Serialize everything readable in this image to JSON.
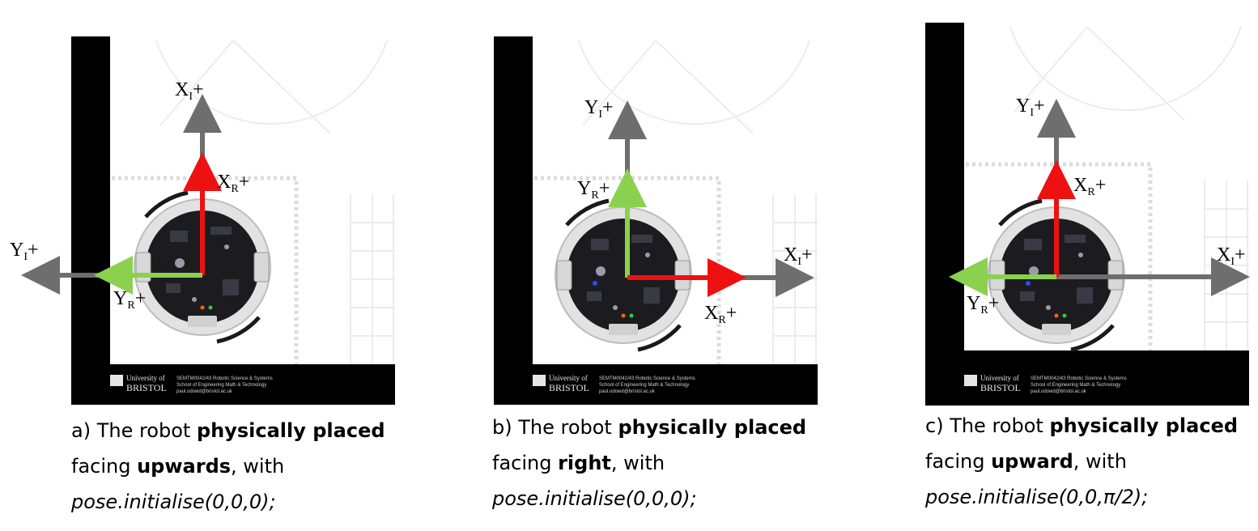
{
  "panels": [
    {
      "axes": {
        "inertial_x": {
          "letter": "X",
          "sub": "I",
          "sign": "+"
        },
        "inertial_y": {
          "letter": "Y",
          "sub": "I",
          "sign": "+"
        },
        "robot_x": {
          "letter": "X",
          "sub": "R",
          "sign": "+"
        },
        "robot_y": {
          "letter": "Y",
          "sub": "R",
          "sign": "+"
        }
      },
      "caption": {
        "prefix": "a) The robot ",
        "bold1": "physically placed",
        "line2_pre": "facing ",
        "bold2": "upwards",
        "line2_post": ", with",
        "code": "pose.initialise(0,0,0);"
      }
    },
    {
      "axes": {
        "inertial_x": {
          "letter": "X",
          "sub": "I",
          "sign": "+"
        },
        "inertial_y": {
          "letter": "Y",
          "sub": "I",
          "sign": "+"
        },
        "robot_x": {
          "letter": "X",
          "sub": "R",
          "sign": "+"
        },
        "robot_y": {
          "letter": "Y",
          "sub": "R",
          "sign": "+"
        }
      },
      "caption": {
        "prefix": "b) The robot ",
        "bold1": "physically placed",
        "line2_pre": "facing ",
        "bold2": "right",
        "line2_post": ", with",
        "code": "pose.initialise(0,0,0);"
      }
    },
    {
      "axes": {
        "inertial_x": {
          "letter": "X",
          "sub": "I",
          "sign": "+"
        },
        "inertial_y": {
          "letter": "Y",
          "sub": "I",
          "sign": "+"
        },
        "robot_x": {
          "letter": "X",
          "sub": "R",
          "sign": "+"
        },
        "robot_y": {
          "letter": "Y",
          "sub": "R",
          "sign": "+"
        }
      },
      "caption": {
        "prefix": "c) The robot ",
        "bold1": "physically placed",
        "line2_pre": "facing ",
        "bold2": "upward",
        "line2_post": ", with",
        "code": "pose.initialise(0,0,π/2);"
      }
    }
  ],
  "map_logo": {
    "university": "University of",
    "name": "BRISTOL",
    "line1": "SEMTM0042/43 Robotic Science & Systems",
    "line2": "School of Engineering Math & Technology",
    "line3": "paul.odowd@bristol.ac.uk"
  },
  "colors": {
    "inertial_axis": "#6e6e6e",
    "robot_x_axis": "#ee1111",
    "robot_y_axis": "#8cd050",
    "map_border": "#000000",
    "map_grid": "#d9d9d9",
    "robot_shell": "#e2e2e2",
    "robot_board": "#1c1c20"
  },
  "icons": [
    "robot-icon",
    "university-logo-icon"
  ]
}
